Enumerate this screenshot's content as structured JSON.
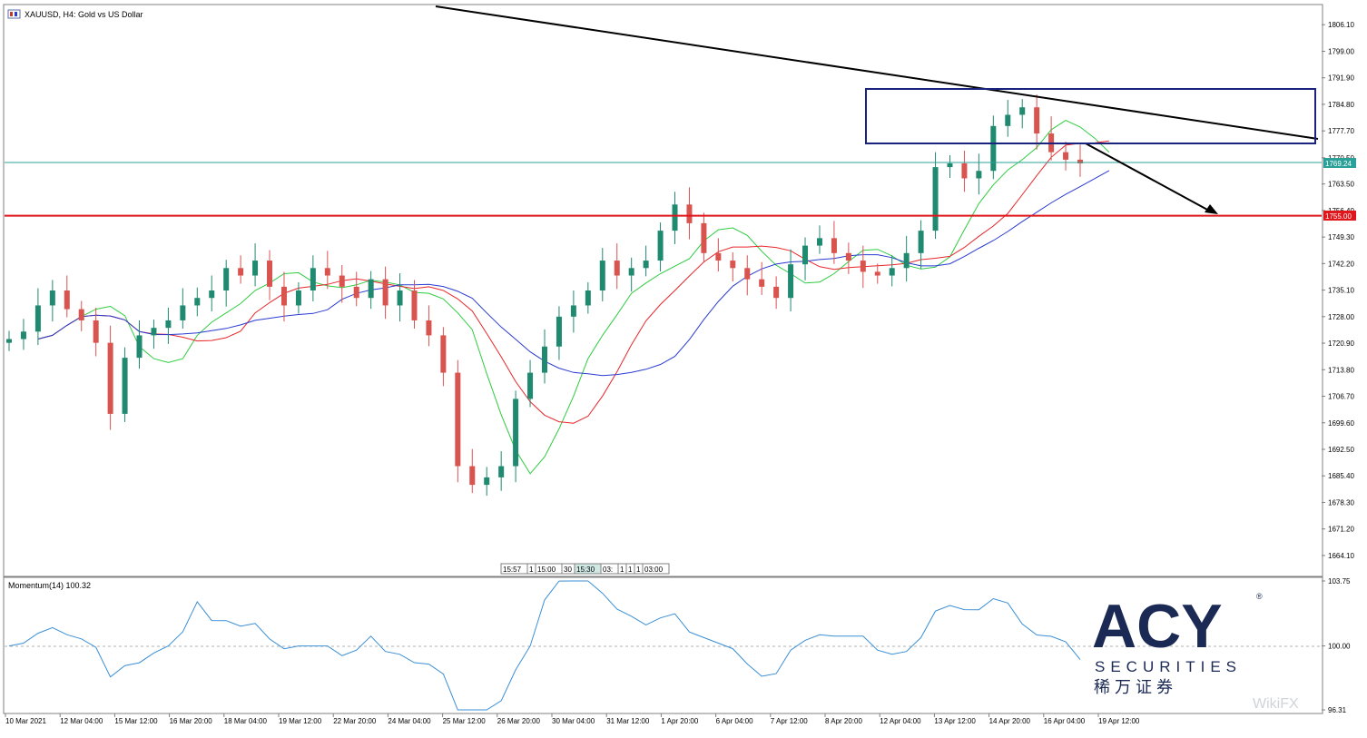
{
  "window": {
    "title": "XAUUSD, H4:  Gold vs US Dollar",
    "icon": "chart-window-icon"
  },
  "colors": {
    "bull_candle": "#1f8a70",
    "bear_candle": "#d9534f",
    "ma_fast": "#2ecc40",
    "ma_mid": "#e8262a",
    "ma_slow": "#2a3bd1",
    "momentum": "#3a8fd6",
    "support_line": "#e0161b",
    "bid_line": "#2aa198",
    "trendline": "#000000",
    "box": "#1a237e",
    "logo": "#1b2a55"
  },
  "price_axis": {
    "ticks": [
      "1806.10",
      "1799.00",
      "1791.90",
      "1784.80",
      "1777.70",
      "1770.50",
      "1763.50",
      "1756.40",
      "1749.30",
      "1742.20",
      "1735.10",
      "1728.00",
      "1720.90",
      "1713.80",
      "1706.70",
      "1699.60",
      "1692.50",
      "1685.40",
      "1678.30",
      "1671.20",
      "1664.10"
    ],
    "current_price_label": "1769.24",
    "support_label": "1755.00"
  },
  "time_axis": {
    "labels": [
      "10 Mar 2021",
      "12 Mar 04:00",
      "15 Mar 12:00",
      "16 Mar 20:00",
      "18 Mar 04:00",
      "19 Mar 12:00",
      "22 Mar 20:00",
      "24 Mar 04:00",
      "25 Mar 12:00",
      "26 Mar 20:00",
      "30 Mar 04:00",
      "31 Mar 12:00",
      "1 Apr 20:00",
      "6 Apr 04:00",
      "7 Apr 12:00",
      "8 Apr 20:00",
      "12 Apr 04:00",
      "13 Apr 12:00",
      "14 Apr 20:00",
      "16 Apr 04:00",
      "19 Apr 12:00"
    ]
  },
  "scroll_markers": [
    "15:57",
    "1",
    "15:00",
    "30",
    "15:30",
    "03:",
    "1",
    "1",
    "1",
    "03:00"
  ],
  "momentum_panel": {
    "label": "Momentum(14) 100.32",
    "ticks": [
      "103.75",
      "100.00",
      "96.31"
    ]
  },
  "logo": {
    "brand": "ACY",
    "registered": "®",
    "tagline": "SECURITIES",
    "chinese": "稀 万 证 券"
  },
  "watermark": "WikiFX",
  "chart_data": {
    "type": "candlestick",
    "symbol": "XAUUSD",
    "timeframe": "H4",
    "title": "XAUUSD, H4:  Gold vs US Dollar",
    "ylim": [
      1658.5,
      1811.5
    ],
    "candles_close_approx": [
      1722,
      1724,
      1731,
      1735,
      1730,
      1727,
      1721,
      1702,
      1717,
      1723,
      1725,
      1727,
      1731,
      1733,
      1735,
      1741,
      1739,
      1743,
      1736,
      1731,
      1735,
      1741,
      1739,
      1736,
      1733,
      1738,
      1731,
      1735,
      1727,
      1723,
      1713,
      1688,
      1683,
      1685,
      1688,
      1706,
      1713,
      1720,
      1728,
      1731,
      1735,
      1743,
      1739,
      1741,
      1743,
      1751,
      1758,
      1753,
      1745,
      1743,
      1741,
      1738,
      1736,
      1733,
      1742,
      1747,
      1749,
      1745,
      1743,
      1740,
      1739,
      1741,
      1745,
      1751,
      1768,
      1769,
      1765,
      1767,
      1779,
      1782,
      1784,
      1777,
      1772,
      1770,
      1769
    ],
    "indicators": [
      {
        "name": "Momentum(14)",
        "last": 100.32,
        "range": [
          96.31,
          103.75
        ]
      }
    ],
    "annotations": {
      "support_level": 1755.0,
      "current_bid": 1769.24
    }
  }
}
